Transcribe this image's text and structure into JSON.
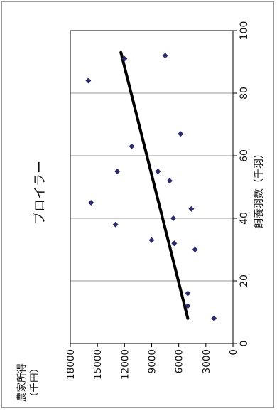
{
  "chart_data": {
    "type": "scatter",
    "title": "ブロイラー",
    "xlabel": "飼養羽数（千羽）",
    "ylabel_line1": "農家所得",
    "ylabel_line2": "（千円）",
    "xlim": [
      0,
      100
    ],
    "ylim": [
      0,
      18000
    ],
    "x_ticks": [
      0,
      20,
      40,
      60,
      80,
      100
    ],
    "y_ticks": [
      3000,
      6000,
      9000,
      12000,
      15000,
      18000
    ],
    "y_tick_labels": [
      "3000",
      "6000",
      "9000",
      "12000",
      "15000",
      "18000"
    ],
    "grid": "horizontal-lines-at-x-ticks",
    "colors": {
      "points": "#2b2b6b",
      "trend": "#000000",
      "grid": "#999999"
    },
    "series": [
      {
        "points": [
          {
            "x": 8,
            "y": 2100
          },
          {
            "x": 12,
            "y": 5000
          },
          {
            "x": 16,
            "y": 5000
          },
          {
            "x": 30,
            "y": 4200
          },
          {
            "x": 32,
            "y": 6500
          },
          {
            "x": 33,
            "y": 9000
          },
          {
            "x": 38,
            "y": 13000
          },
          {
            "x": 40,
            "y": 6600
          },
          {
            "x": 43,
            "y": 4600
          },
          {
            "x": 45,
            "y": 15700
          },
          {
            "x": 52,
            "y": 7000
          },
          {
            "x": 55,
            "y": 8300
          },
          {
            "x": 55,
            "y": 12800
          },
          {
            "x": 63,
            "y": 11200
          },
          {
            "x": 67,
            "y": 5800
          },
          {
            "x": 84,
            "y": 16000
          },
          {
            "x": 91,
            "y": 12000
          },
          {
            "x": 92,
            "y": 7500
          }
        ]
      }
    ],
    "trendline": [
      {
        "x": 8,
        "y": 5000
      },
      {
        "x": 93,
        "y": 12400
      }
    ]
  }
}
